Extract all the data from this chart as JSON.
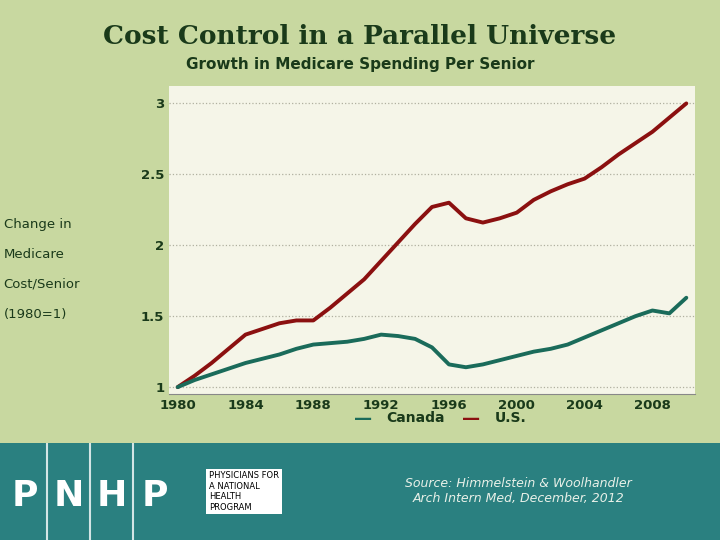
{
  "title": "Cost Control in a Parallel Universe",
  "subtitle": "Growth in Medicare Spending Per Senior",
  "ylabel_lines": [
    "Change in",
    "Medicare",
    "Cost/Senior",
    "(1980=1)"
  ],
  "source_line1": "Source: Himmelstein & Woolhandler",
  "source_line2": "Arch Intern Med, December, 2012",
  "bg_color": "#c8d8a0",
  "plot_bg_color": "#f5f5e8",
  "title_color": "#1a3a1a",
  "canada_color": "#1a6b5a",
  "us_color": "#8b1010",
  "footer_bg": "#2a8080",
  "footer_text_color": "#ffffff",
  "source_text_color": "#e8f0e8",
  "grid_color": "#b0b0a0",
  "ylim": [
    0.95,
    3.12
  ],
  "yticks": [
    1.0,
    1.5,
    2.0,
    2.5,
    3.0
  ],
  "ytick_labels": [
    "1",
    "1.5",
    "2",
    "2.5",
    "3"
  ],
  "xticks": [
    1980,
    1984,
    1988,
    1992,
    1996,
    2000,
    2004,
    2008
  ],
  "xlim": [
    1979.5,
    2010.5
  ],
  "years": [
    1980,
    1981,
    1982,
    1983,
    1984,
    1985,
    1986,
    1987,
    1988,
    1989,
    1990,
    1991,
    1992,
    1993,
    1994,
    1995,
    1996,
    1997,
    1998,
    1999,
    2000,
    2001,
    2002,
    2003,
    2004,
    2005,
    2006,
    2007,
    2008,
    2009,
    2010
  ],
  "canada": [
    1.0,
    1.05,
    1.09,
    1.13,
    1.17,
    1.2,
    1.23,
    1.27,
    1.3,
    1.31,
    1.32,
    1.34,
    1.37,
    1.36,
    1.34,
    1.28,
    1.16,
    1.14,
    1.16,
    1.19,
    1.22,
    1.25,
    1.27,
    1.3,
    1.35,
    1.4,
    1.45,
    1.5,
    1.54,
    1.52,
    1.63
  ],
  "us": [
    1.0,
    1.08,
    1.17,
    1.27,
    1.37,
    1.41,
    1.45,
    1.47,
    1.47,
    1.56,
    1.66,
    1.76,
    1.89,
    2.02,
    2.15,
    2.27,
    2.3,
    2.19,
    2.16,
    2.19,
    2.23,
    2.32,
    2.38,
    2.43,
    2.47,
    2.55,
    2.64,
    2.72,
    2.8,
    2.9,
    3.0
  ],
  "legend_canada": "Canada",
  "legend_us": "U.S.",
  "pnhp_letters": [
    "P",
    "N",
    "H",
    "P"
  ],
  "pnhp_label": "PHYSICIANS FOR\nA NATIONAL\nHEALTH\nPROGRAM"
}
